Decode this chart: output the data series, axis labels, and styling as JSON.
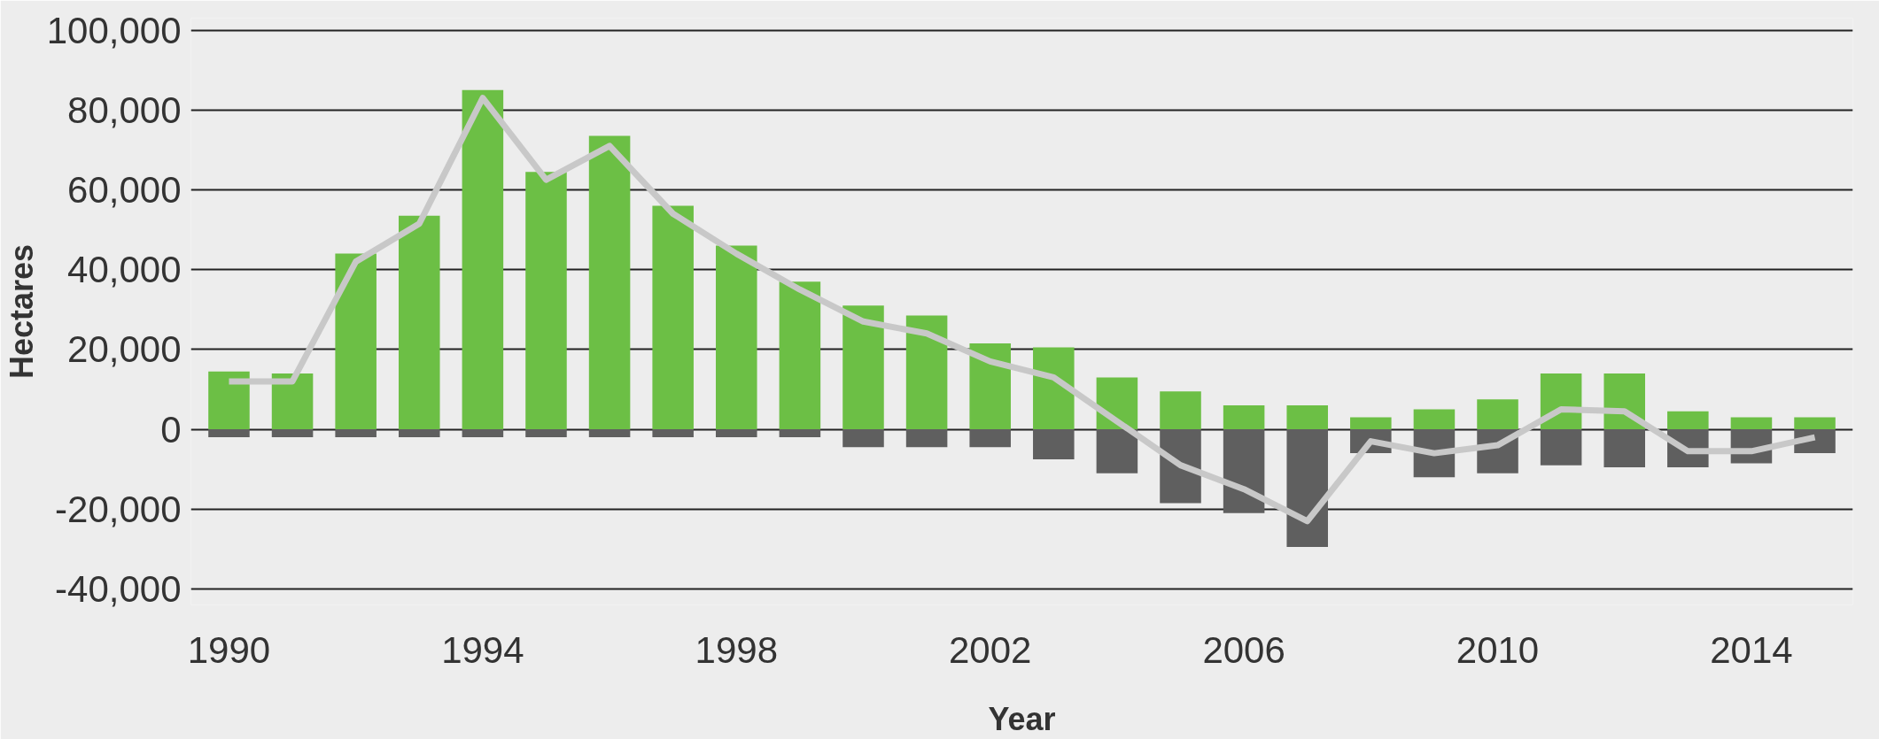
{
  "chart_data": {
    "type": "bar",
    "xlabel": "Year",
    "ylabel": "Hectares",
    "x": [
      1990,
      1991,
      1992,
      1993,
      1994,
      1995,
      1996,
      1997,
      1998,
      1999,
      2000,
      2001,
      2002,
      2003,
      2004,
      2005,
      2006,
      2007,
      2008,
      2009,
      2010,
      2011,
      2012,
      2013,
      2014,
      2015
    ],
    "series": [
      {
        "color": "#6cbf45",
        "values": [
          14500,
          14000,
          44000,
          53500,
          85000,
          64500,
          73500,
          56000,
          46000,
          37000,
          31000,
          28500,
          21500,
          20500,
          13000,
          9500,
          6000,
          6000,
          3000,
          5000,
          7500,
          14000,
          14000,
          4500,
          3000,
          3000
        ]
      },
      {
        "color": "#5f5f5f",
        "values": [
          -2000,
          -2000,
          -2000,
          -2000,
          -2000,
          -2000,
          -2000,
          -2000,
          -2000,
          -2000,
          -4500,
          -4500,
          -4500,
          -7500,
          -11000,
          -18500,
          -21000,
          -29500,
          -6000,
          -12000,
          -11000,
          -9000,
          -9500,
          -9500,
          -8500,
          -6000
        ]
      },
      {
        "type": "line",
        "color": "#c8c8c8",
        "values": [
          12000,
          12000,
          42000,
          51500,
          83000,
          62500,
          71000,
          54000,
          44000,
          35000,
          27000,
          24000,
          17000,
          13000,
          2000,
          -9000,
          -15000,
          -23000,
          -3000,
          -6000,
          -4000,
          5000,
          4500,
          -5500,
          -5500,
          -2000
        ]
      }
    ],
    "xlim": [
      1989.4,
      2015.6
    ],
    "xticks": [
      1990,
      1994,
      1998,
      2002,
      2006,
      2010,
      2014
    ],
    "ylim": [
      -44000,
      103000
    ],
    "yticks": [
      {
        "value": -40000,
        "label": "-40,000"
      },
      {
        "value": -20000,
        "label": "-20,000"
      },
      0,
      {
        "value": 20000,
        "label": "20,000"
      },
      {
        "value": 40000,
        "label": "40,000"
      },
      {
        "value": 60000,
        "label": "60,000"
      },
      {
        "value": 80000,
        "label": "80,000"
      },
      {
        "value": 100000,
        "label": "100,000"
      }
    ],
    "grid": "y",
    "stacked": true
  }
}
